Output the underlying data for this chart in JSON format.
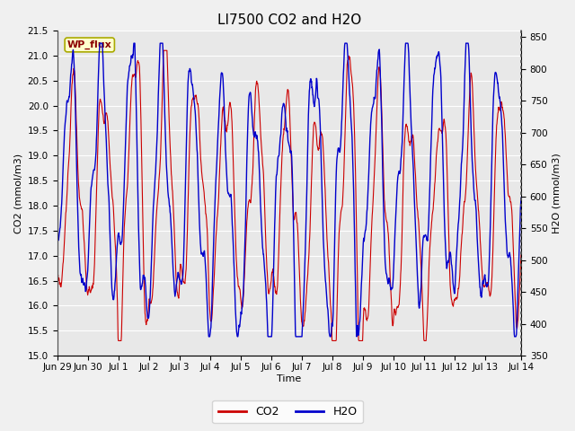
{
  "title": "LI7500 CO2 and H2O",
  "xlabel": "Time",
  "ylabel_left": "CO2 (mmol/m3)",
  "ylabel_right": "H2O (mmol/m3)",
  "co2_color": "#cc0000",
  "h2o_color": "#0000cc",
  "co2_linewidth": 0.8,
  "h2o_linewidth": 1.0,
  "ylim_left": [
    15.0,
    21.5
  ],
  "ylim_right": [
    350,
    860
  ],
  "yticks_left": [
    15.0,
    15.5,
    16.0,
    16.5,
    17.0,
    17.5,
    18.0,
    18.5,
    19.0,
    19.5,
    20.0,
    20.5,
    21.0,
    21.5
  ],
  "yticks_right": [
    350,
    400,
    450,
    500,
    550,
    600,
    650,
    700,
    750,
    800,
    850
  ],
  "background_color": "#f0f0f0",
  "plot_bg_color": "#e8e8e8",
  "grid_color": "#ffffff",
  "watermark_text": "WP_flux",
  "watermark_bg": "#ffffcc",
  "watermark_fg": "#8b0000",
  "watermark_border": "#aaaa00",
  "legend_co2": "CO2",
  "legend_h2o": "H2O",
  "title_fontsize": 11,
  "axis_label_fontsize": 8,
  "tick_fontsize": 7.5,
  "n_points": 1500,
  "x_start_days": 0.0,
  "x_end_days": 15.17,
  "xtick_positions": [
    0.0,
    1.0,
    2.0,
    3.0,
    4.0,
    5.0,
    6.0,
    7.0,
    8.0,
    9.0,
    10.0,
    11.0,
    12.0,
    13.0,
    14.0,
    15.17
  ],
  "xtick_labels": [
    "Jun 29",
    "Jun 30",
    "Jul 1",
    "Jul 2",
    "Jul 3",
    "Jul 4",
    "Jul 5",
    "Jul 6",
    "Jul 7",
    "Jul 8",
    "Jul 9",
    "Jul 10",
    "Jul 11",
    "Jul 12",
    "Jul 13",
    "Jul 14"
  ]
}
